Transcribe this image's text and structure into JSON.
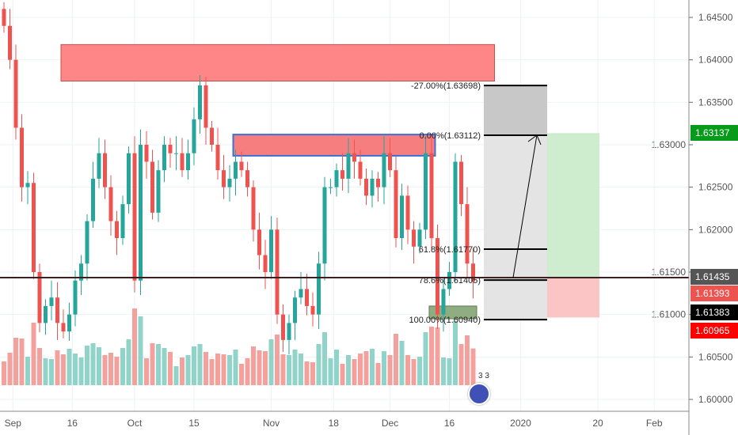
{
  "chart_data": {
    "type": "candlestick",
    "ylim": [
      1.5985,
      1.6475
    ],
    "y_ticks": [
      "1.64500",
      "1.64000",
      "1.63500",
      "1.63000",
      "1.62500",
      "1.62000",
      "1.61500",
      "1.61000",
      "1.60500",
      "1.60000"
    ],
    "y_tick_values": [
      1.645,
      1.64,
      1.635,
      1.63,
      1.625,
      1.62,
      1.615,
      1.61,
      1.605,
      1.6
    ],
    "x_ticks": [
      {
        "label": "Sep",
        "bar": 1.5
      },
      {
        "label": "16",
        "bar": 11.5
      },
      {
        "label": "Oct",
        "bar": 22
      },
      {
        "label": "15",
        "bar": 32
      },
      {
        "label": "Nov",
        "bar": 45
      },
      {
        "label": "18",
        "bar": 55.5
      },
      {
        "label": "Dec",
        "bar": 65
      },
      {
        "label": "16",
        "bar": 75
      },
      {
        "label": "2020",
        "bar": 87
      },
      {
        "label": "20",
        "bar": 100
      },
      {
        "label": "Feb",
        "bar": 109.5
      }
    ],
    "closes": [
      1.644,
      1.64,
      1.632,
      1.625,
      1.6255,
      1.615,
      1.609,
      1.611,
      1.612,
      1.609,
      1.608,
      1.61,
      1.614,
      1.616,
      1.621,
      1.626,
      1.629,
      1.625,
      1.621,
      1.619,
      1.623,
      1.629,
      1.614,
      1.63,
      1.628,
      1.622,
      1.627,
      1.63,
      1.629,
      1.629,
      1.627,
      1.629,
      1.633,
      1.637,
      1.632,
      1.63,
      1.627,
      1.625,
      1.626,
      1.628,
      1.627,
      1.625,
      1.62,
      1.617,
      1.615,
      1.62,
      1.61,
      1.607,
      1.609,
      1.612,
      1.613,
      1.611,
      1.61,
      1.616,
      1.625,
      1.625,
      1.627,
      1.626,
      1.629,
      1.628,
      1.626,
      1.624,
      1.626,
      1.625,
      1.629,
      1.627,
      1.619,
      1.624,
      1.62,
      1.618,
      1.62,
      1.629,
      1.619,
      1.61,
      1.613,
      1.615,
      1.628,
      1.623,
      1.616,
      1.6139
    ],
    "first_open": 1.646,
    "zones": [
      {
        "name": "supply-zone-top",
        "from": 1.6375,
        "to": 1.6418,
        "bar_start": 10,
        "bar_end": 83
      },
      {
        "name": "resistance-zone",
        "from": 1.6287,
        "to": 1.6312,
        "bar_start": 39,
        "bar_end": 73
      },
      {
        "name": "demand-zone",
        "from": 1.6095,
        "to": 1.611,
        "bar_start": 72,
        "bar_end": 80
      }
    ],
    "horizontal_line": 1.61435,
    "fib": {
      "levels": [
        {
          "label": "-27.00%(1.63698)",
          "price": 1.63698
        },
        {
          "label": "0.00%(1.63112)",
          "price": 1.63112
        },
        {
          "label": "61.8%(1.61770)",
          "price": 1.6177
        },
        {
          "label": "78.6%(1.61405)",
          "price": 1.61405
        },
        {
          "label": "100.00%(1.60940)",
          "price": 1.6094
        }
      ]
    },
    "position": {
      "entry": 1.61435,
      "target": 1.63137,
      "stop": 1.60965
    },
    "price_tags": [
      {
        "label": "1.63137",
        "price": 1.63137,
        "color": "#089a1a"
      },
      {
        "label": "1.61435",
        "price": 1.61435,
        "color": "#555555"
      },
      {
        "label": "1.61393",
        "price": 1.61393,
        "color": "#ef5350"
      },
      {
        "label": "1.61383",
        "price": 1.61383,
        "color": "#000000"
      },
      {
        "label": "1.60965",
        "price": 1.60965,
        "color": "#ff0000"
      }
    ],
    "colors": {
      "up": "#26a69a",
      "down": "#ef5350",
      "vol_up": "#8fd3c9",
      "vol_down": "#f4a09c"
    }
  },
  "badge": {
    "text": "3 3"
  }
}
